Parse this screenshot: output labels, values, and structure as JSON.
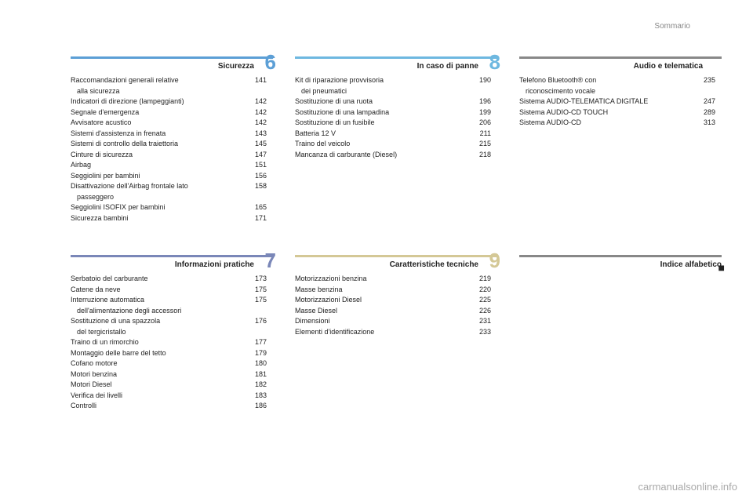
{
  "page_header": "Sommario",
  "watermark": "carmanualsonline.info",
  "sections": [
    {
      "id": "sicurezza",
      "title": "Sicurezza",
      "chapter_num": "6",
      "rule_color": "#5c9fd6",
      "num_color": "#5c9fd6",
      "entries": [
        {
          "label": "Raccomandazioni generali relative\nalla sicurezza",
          "page": "141",
          "multiline": true
        },
        {
          "label": "Indicatori di direzione (lampeggianti)",
          "page": "142"
        },
        {
          "label": "Segnale d'emergenza",
          "page": "142"
        },
        {
          "label": "Avvisatore acustico",
          "page": "142"
        },
        {
          "label": "Sistemi d'assistenza in frenata",
          "page": "143"
        },
        {
          "label": "Sistemi di controllo della traiettoria",
          "page": "145"
        },
        {
          "label": "Cinture di sicurezza",
          "page": "147"
        },
        {
          "label": "Airbag",
          "page": "151"
        },
        {
          "label": "Seggiolini per bambini",
          "page": "156"
        },
        {
          "label": "Disattivazione dell'Airbag frontale lato\npasseggero",
          "page": "158",
          "multiline": true
        },
        {
          "label": "Seggiolini ISOFIX per bambini",
          "page": "165"
        },
        {
          "label": "Sicurezza bambini",
          "page": "171"
        }
      ]
    },
    {
      "id": "panne",
      "title": "In caso di panne",
      "chapter_num": "8",
      "rule_color": "#6eb8e0",
      "num_color": "#6eb8e0",
      "entries": [
        {
          "label": "Kit di riparazione provvisoria\ndei pneumatici",
          "page": "190",
          "multiline": true
        },
        {
          "label": "Sostituzione di una ruota",
          "page": "196"
        },
        {
          "label": "Sostituzione di una lampadina",
          "page": "199"
        },
        {
          "label": "Sostituzione di un fusibile",
          "page": "206"
        },
        {
          "label": "Batteria 12 V",
          "page": "211"
        },
        {
          "label": "Traino del veicolo",
          "page": "215"
        },
        {
          "label": "Mancanza di carburante (Diesel)",
          "page": "218"
        }
      ]
    },
    {
      "id": "audio",
      "title": "Audio e telematica",
      "chapter_num": "",
      "rule_color": "#888888",
      "num_color": "#888888",
      "entries": [
        {
          "label": "Telefono Bluetooth® con\nriconoscimento vocale",
          "page": "235",
          "multiline": true
        },
        {
          "label": "Sistema AUDIO-TELEMATICA DIGITALE",
          "page": "247"
        },
        {
          "label": "Sistema AUDIO-CD TOUCH",
          "page": "289"
        },
        {
          "label": "Sistema AUDIO-CD",
          "page": "313"
        }
      ]
    },
    {
      "id": "info",
      "title": "Informazioni pratiche",
      "chapter_num": "7",
      "rule_color": "#7a87b8",
      "num_color": "#7a87b8",
      "entries": [
        {
          "label": "Serbatoio del carburante",
          "page": "173"
        },
        {
          "label": "Catene da neve",
          "page": "175"
        },
        {
          "label": "Interruzione automatica\ndell'alimentazione degli accessori",
          "page": "175",
          "multiline": true
        },
        {
          "label": "Sostituzione di una spazzola\ndel tergicristallo",
          "page": "176",
          "multiline": true
        },
        {
          "label": "Traino di un rimorchio",
          "page": "177"
        },
        {
          "label": "Montaggio delle barre del tetto",
          "page": "179"
        },
        {
          "label": "Cofano motore",
          "page": "180"
        },
        {
          "label": "Motori benzina",
          "page": "181"
        },
        {
          "label": "Motori Diesel",
          "page": "182"
        },
        {
          "label": "Verifica dei livelli",
          "page": "183"
        },
        {
          "label": "Controlli",
          "page": "186"
        }
      ]
    },
    {
      "id": "tecniche",
      "title": "Caratteristiche tecniche",
      "chapter_num": "9",
      "rule_color": "#d4c896",
      "num_color": "#d4c896",
      "entries": [
        {
          "label": "Motorizzazioni benzina",
          "page": "219"
        },
        {
          "label": "Masse benzina",
          "page": "220"
        },
        {
          "label": "Motorizzazioni Diesel",
          "page": "225"
        },
        {
          "label": "Masse Diesel",
          "page": "226"
        },
        {
          "label": "Dimensioni",
          "page": "231"
        },
        {
          "label": "Elementi d'identificazione",
          "page": "233"
        }
      ]
    },
    {
      "id": "indice",
      "title": "Indice alfabetico",
      "chapter_num": "",
      "rule_color": "#888888",
      "num_color": "#888888",
      "index_dot": true,
      "entries": []
    }
  ]
}
